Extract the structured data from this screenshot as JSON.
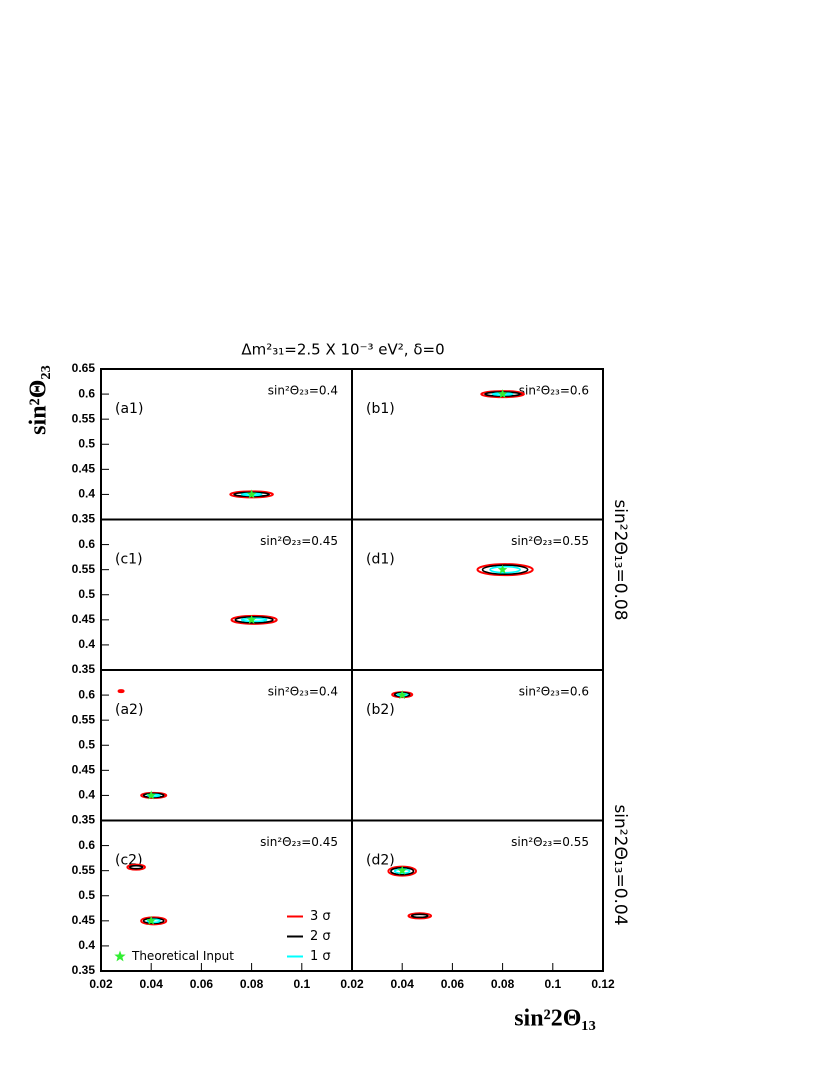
{
  "chart_data": {
    "type": "contour",
    "title": "Δm²₃₁=2.5 X 10⁻³ eV², δ=0",
    "x_label": "sin²2Θ₁₃",
    "y_label": "sin²Θ₂₃",
    "side_labels": [
      "sin²2Θ₁₃=0.08",
      "sin²2Θ₁₃=0.04"
    ],
    "legend": [
      {
        "name": "3 σ",
        "color": "#ff0000"
      },
      {
        "name": "2 σ",
        "color": "#000000"
      },
      {
        "name": "1 σ",
        "color": "#00ffff"
      }
    ],
    "marker": {
      "name": "Theoretical Input",
      "color": "#33ee33"
    },
    "panels": [
      {
        "label": "(a1)",
        "note": "sin²Θ₂₃=0.4",
        "xlim": [
          0.02,
          0.12
        ],
        "ylim": [
          0.35,
          0.65
        ],
        "yticks": [
          0.35,
          0.4,
          0.45,
          0.5,
          0.55,
          0.6,
          0.65
        ],
        "input": {
          "x": 0.08,
          "y": 0.4
        },
        "regions": [
          {
            "x": 0.08,
            "y": 0.4,
            "rx": [
              0.0085,
              0.007,
              0.004
            ],
            "ry": [
              0.006,
              0.004,
              0.002
            ]
          }
        ]
      },
      {
        "label": "(b1)",
        "note": "sin²Θ₂₃=0.6",
        "xlim": [
          0.02,
          0.12
        ],
        "ylim": [
          0.35,
          0.65
        ],
        "input": {
          "x": 0.08,
          "y": 0.6
        },
        "regions": [
          {
            "x": 0.08,
            "y": 0.6,
            "rx": [
              0.0085,
              0.007,
              0.004
            ],
            "ry": [
              0.006,
              0.004,
              0.002
            ]
          }
        ]
      },
      {
        "label": "(c1)",
        "note": "sin²Θ₂₃=0.45",
        "xlim": [
          0.02,
          0.12
        ],
        "ylim": [
          0.35,
          0.65
        ],
        "yticks": [
          0.35,
          0.4,
          0.45,
          0.5,
          0.55,
          0.6
        ],
        "input": {
          "x": 0.08,
          "y": 0.45
        },
        "regions": [
          {
            "x": 0.081,
            "y": 0.45,
            "rx": [
              0.009,
              0.0075,
              0.005
            ],
            "ry": [
              0.008,
              0.006,
              0.003
            ]
          }
        ]
      },
      {
        "label": "(d1)",
        "note": "sin²Θ₂₃=0.55",
        "xlim": [
          0.02,
          0.12
        ],
        "ylim": [
          0.35,
          0.65
        ],
        "input": {
          "x": 0.08,
          "y": 0.55
        },
        "regions": [
          {
            "x": 0.081,
            "y": 0.55,
            "rx": [
              0.011,
              0.009,
              0.006
            ],
            "ry": [
              0.011,
              0.009,
              0.006
            ]
          }
        ]
      },
      {
        "label": "(a2)",
        "note": "sin²Θ₂₃=0.4",
        "xlim": [
          0.02,
          0.12
        ],
        "ylim": [
          0.35,
          0.65
        ],
        "yticks": [
          0.35,
          0.4,
          0.45,
          0.5,
          0.55,
          0.6
        ],
        "input": {
          "x": 0.04,
          "y": 0.4
        },
        "regions": [
          {
            "x": 0.041,
            "y": 0.4,
            "rx": [
              0.005,
              0.004,
              0.0025
            ],
            "ry": [
              0.005,
              0.004,
              0.002
            ]
          },
          {
            "x": 0.028,
            "y": 0.608,
            "rx": [
              0.001
            ],
            "ry": [
              0.002
            ]
          }
        ]
      },
      {
        "label": "(b2)",
        "note": "sin²Θ₂₃=0.6",
        "xlim": [
          0.02,
          0.12
        ],
        "ylim": [
          0.35,
          0.65
        ],
        "input": {
          "x": 0.04,
          "y": 0.6
        },
        "regions": [
          {
            "x": 0.04,
            "y": 0.601,
            "rx": [
              0.004,
              0.003,
              0.002
            ],
            "ry": [
              0.005,
              0.004,
              0.002
            ]
          }
        ]
      },
      {
        "label": "(c2)",
        "note": "sin²Θ₂₃=0.45",
        "xlim": [
          0.02,
          0.12
        ],
        "ylim": [
          0.35,
          0.65
        ],
        "yticks": [
          0.35,
          0.4,
          0.45,
          0.5,
          0.55,
          0.6
        ],
        "xticks": [
          0.02,
          0.04,
          0.06,
          0.08,
          0.1
        ],
        "input": {
          "x": 0.04,
          "y": 0.45
        },
        "regions": [
          {
            "x": 0.041,
            "y": 0.45,
            "rx": [
              0.005,
              0.004,
              0.0025
            ],
            "ry": [
              0.007,
              0.005,
              0.003
            ]
          },
          {
            "x": 0.034,
            "y": 0.557,
            "rx": [
              0.0035,
              0.0025
            ],
            "ry": [
              0.005,
              0.003
            ]
          }
        ]
      },
      {
        "label": "(d2)",
        "note": "sin²Θ₂₃=0.55",
        "xlim": [
          0.02,
          0.12
        ],
        "ylim": [
          0.35,
          0.65
        ],
        "xticks": [
          0.02,
          0.04,
          0.06,
          0.08,
          0.1,
          0.12
        ],
        "input": {
          "x": 0.04,
          "y": 0.55
        },
        "regions": [
          {
            "x": 0.04,
            "y": 0.549,
            "rx": [
              0.0055,
              0.0045,
              0.003
            ],
            "ry": [
              0.009,
              0.007,
              0.004
            ]
          },
          {
            "x": 0.047,
            "y": 0.46,
            "rx": [
              0.0045,
              0.0032
            ],
            "ry": [
              0.005,
              0.003
            ]
          }
        ]
      }
    ]
  }
}
